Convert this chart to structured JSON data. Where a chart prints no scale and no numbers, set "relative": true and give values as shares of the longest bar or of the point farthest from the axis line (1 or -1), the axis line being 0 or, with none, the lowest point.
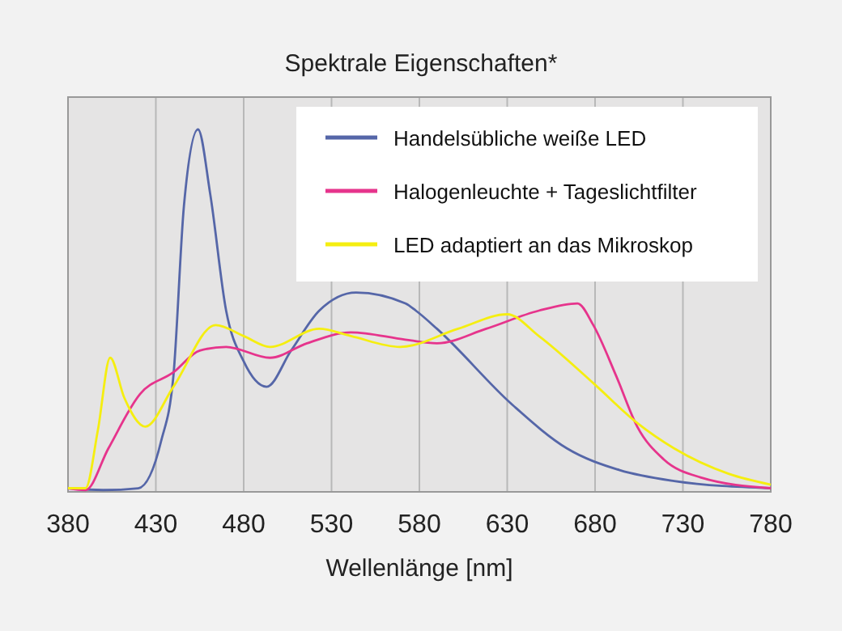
{
  "chart_data": {
    "type": "line",
    "title": "Spektrale Eigenschaften*",
    "xlabel": "Wellenlänge [nm]",
    "relative": true,
    "xlim": [
      380,
      780
    ],
    "xticks": [
      380,
      430,
      480,
      530,
      580,
      630,
      680,
      730,
      780
    ],
    "grid": "x",
    "legend": "top right",
    "marker": "none",
    "line_style": "solid",
    "series": [
      {
        "name": "Handelsübliche weiße LED",
        "color": "#5566a8",
        "x": [
          380,
          400,
          420,
          433,
          440,
          446,
          454,
          461,
          470,
          480,
          493,
          507,
          523,
          544,
          572,
          578,
          590,
          633,
          664,
          694,
          725,
          780
        ],
        "values": [
          0.01,
          0.005,
          0.01,
          0.14,
          0.32,
          0.79,
          1,
          0.82,
          0.5,
          0.36,
          0.29,
          0.39,
          0.5,
          0.55,
          0.52,
          0.5,
          0.45,
          0.24,
          0.12,
          0.06,
          0.03,
          0.01
        ]
      },
      {
        "name": "Halogenleuchte + Tageslichtfilter",
        "color": "#e6348c",
        "x": [
          380,
          390,
          403,
          421,
          440,
          455,
          470,
          495,
          516,
          541,
          572,
          590,
          618,
          648,
          670,
          679,
          692,
          704,
          719,
          740,
          780
        ],
        "values": [
          0.01,
          0.005,
          0.12,
          0.27,
          0.33,
          0.39,
          0.4,
          0.37,
          0.41,
          0.44,
          0.42,
          0.41,
          0.45,
          0.5,
          0.52,
          0.46,
          0.32,
          0.18,
          0.09,
          0.04,
          0.01
        ]
      },
      {
        "name": "LED adaptiert an das Mikroskop",
        "color": "#f5ee10",
        "x": [
          380,
          390,
          397,
          404,
          412,
          424,
          440,
          464,
          480,
          495,
          523,
          541,
          569,
          602,
          630,
          648,
          679,
          704,
          725,
          756,
          780
        ],
        "values": [
          0.01,
          0.01,
          0.17,
          0.37,
          0.26,
          0.18,
          0.29,
          0.46,
          0.43,
          0.4,
          0.45,
          0.43,
          0.4,
          0.45,
          0.49,
          0.43,
          0.3,
          0.19,
          0.12,
          0.05,
          0.02
        ]
      }
    ]
  }
}
